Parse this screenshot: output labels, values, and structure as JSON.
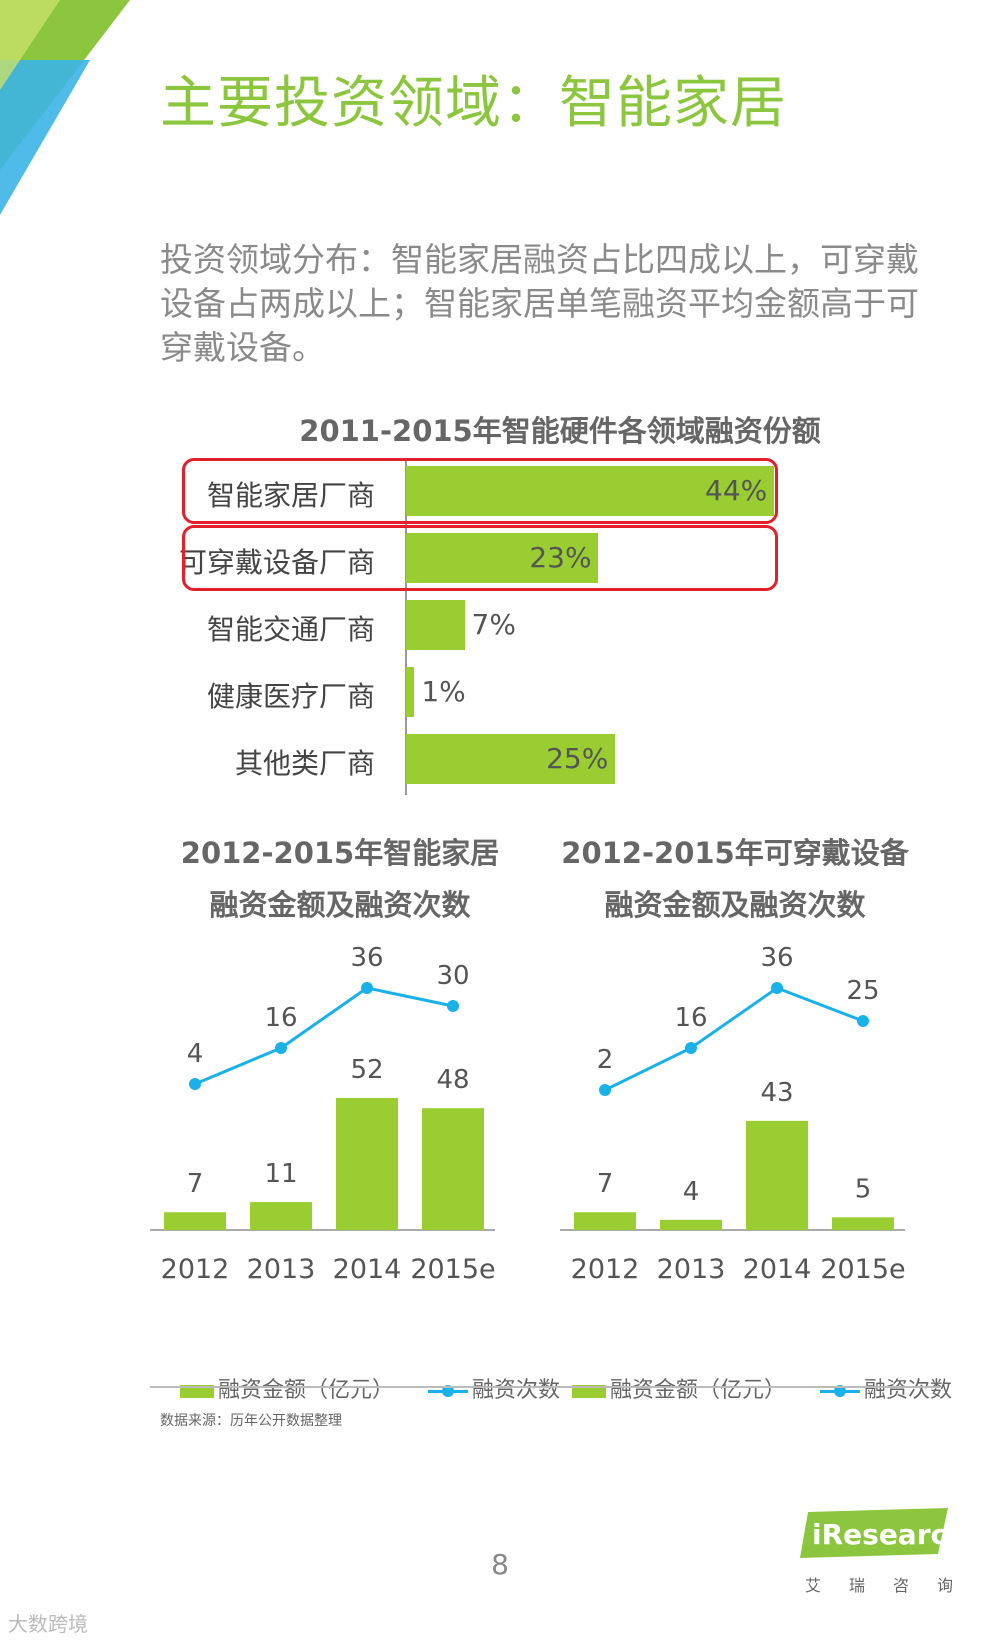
{
  "page": {
    "title": "主要投资领域：智能家居",
    "subtitle": "投资领域分布：智能家居融资占比四成以上，可穿戴设备占两成以上；智能家居单笔融资平均金额高于可穿戴设备。",
    "source": "数据来源：历年公开数据整理",
    "page_number": "8",
    "logo_text": "iResearch",
    "logo_cn": "艾瑞咨询",
    "watermark": "大数跨境",
    "colors": {
      "accent_green": "#8cc63f",
      "bar_green": "#9acd32",
      "line_blue": "#1ab0e8",
      "highlight_red": "#e0202a"
    }
  },
  "chart_data": [
    {
      "type": "bar",
      "orientation": "horizontal",
      "title": "2011-2015年智能硬件各领域融资份额",
      "categories": [
        "智能家居厂商",
        "可穿戴设备厂商",
        "智能交通厂商",
        "健康医疗厂商",
        "其他类厂商"
      ],
      "values": [
        44,
        23,
        7,
        1,
        25
      ],
      "labels": [
        "44%",
        "23%",
        "7%",
        "1%",
        "25%"
      ],
      "highlighted": [
        "智能家居厂商",
        "可穿戴设备厂商"
      ]
    },
    {
      "type": "bar",
      "title_line1": "2012-2015年智能家居",
      "title_line2": "融资金额及融资次数",
      "categories": [
        "2012",
        "2013",
        "2014",
        "2015e"
      ],
      "series": [
        {
          "name": "融资金额（亿元）",
          "type": "bar",
          "values": [
            7,
            11,
            52,
            48
          ]
        },
        {
          "name": "融资次数",
          "type": "line",
          "values": [
            4,
            16,
            36,
            30
          ]
        }
      ]
    },
    {
      "type": "bar",
      "title_line1": "2012-2015年可穿戴设备",
      "title_line2": "融资金额及融资次数",
      "categories": [
        "2012",
        "2013",
        "2014",
        "2015e"
      ],
      "series": [
        {
          "name": "融资金额（亿元）",
          "type": "bar",
          "values": [
            7,
            4,
            43,
            5
          ]
        },
        {
          "name": "融资次数",
          "type": "line",
          "values": [
            2,
            16,
            36,
            25
          ]
        }
      ]
    }
  ]
}
